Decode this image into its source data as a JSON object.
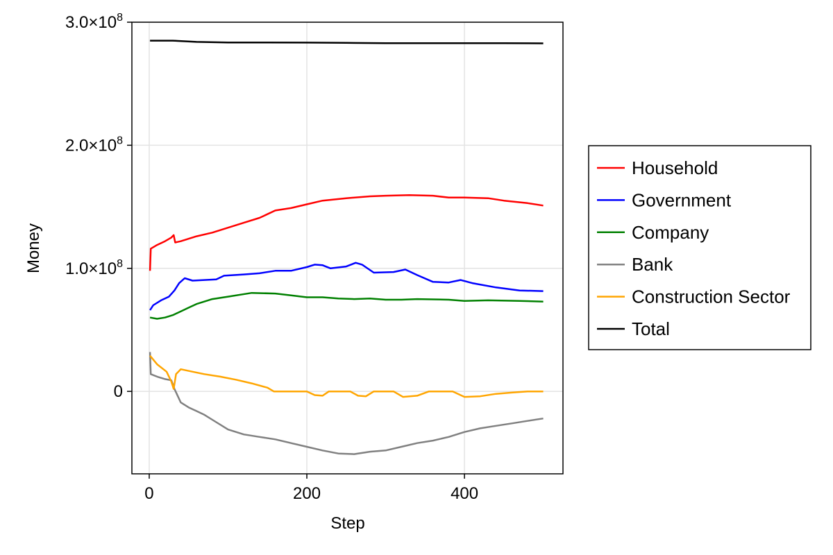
{
  "chart_data": {
    "type": "line",
    "title": "",
    "xlabel": "Step",
    "ylabel": "Money",
    "xlim": [
      -22,
      525
    ],
    "ylim": [
      -67000000,
      300000000
    ],
    "x_ticks": [
      0,
      200,
      400
    ],
    "x_tick_labels": [
      "0",
      "200",
      "400"
    ],
    "y_ticks": [
      0,
      100000000,
      200000000,
      300000000
    ],
    "y_tick_labels": [
      {
        "mant": "0",
        "exp": ""
      },
      {
        "mant": "1.0×10",
        "exp": "8"
      },
      {
        "mant": "2.0×10",
        "exp": "8"
      },
      {
        "mant": "3.0×10",
        "exp": "8"
      }
    ],
    "grid": true,
    "legend_position": "right",
    "series": [
      {
        "name": "Household",
        "color": "#ff0000",
        "points": [
          [
            1,
            98000000
          ],
          [
            2,
            116000000
          ],
          [
            10,
            119000000
          ],
          [
            20,
            122000000
          ],
          [
            28,
            125000000
          ],
          [
            31,
            127000000
          ],
          [
            33,
            121000000
          ],
          [
            40,
            122000000
          ],
          [
            60,
            126000000
          ],
          [
            80,
            129000000
          ],
          [
            100,
            133000000
          ],
          [
            120,
            137000000
          ],
          [
            140,
            141000000
          ],
          [
            160,
            147000000
          ],
          [
            180,
            149000000
          ],
          [
            200,
            152000000
          ],
          [
            220,
            155000000
          ],
          [
            250,
            157000000
          ],
          [
            280,
            158500000
          ],
          [
            300,
            159000000
          ],
          [
            330,
            159500000
          ],
          [
            360,
            159000000
          ],
          [
            380,
            157500000
          ],
          [
            400,
            157500000
          ],
          [
            430,
            157000000
          ],
          [
            450,
            155000000
          ],
          [
            480,
            153000000
          ],
          [
            500,
            151000000
          ]
        ]
      },
      {
        "name": "Government",
        "color": "#0000ff",
        "points": [
          [
            1,
            66000000
          ],
          [
            5,
            70000000
          ],
          [
            15,
            74000000
          ],
          [
            25,
            77000000
          ],
          [
            32,
            82000000
          ],
          [
            38,
            88000000
          ],
          [
            45,
            92000000
          ],
          [
            55,
            90000000
          ],
          [
            70,
            90500000
          ],
          [
            85,
            91000000
          ],
          [
            95,
            94000000
          ],
          [
            120,
            95000000
          ],
          [
            140,
            96000000
          ],
          [
            160,
            98000000
          ],
          [
            180,
            98000000
          ],
          [
            200,
            101000000
          ],
          [
            210,
            103000000
          ],
          [
            220,
            102500000
          ],
          [
            230,
            100000000
          ],
          [
            250,
            101500000
          ],
          [
            262,
            104500000
          ],
          [
            270,
            103000000
          ],
          [
            285,
            96500000
          ],
          [
            310,
            97000000
          ],
          [
            325,
            99000000
          ],
          [
            340,
            94500000
          ],
          [
            360,
            89000000
          ],
          [
            380,
            88500000
          ],
          [
            395,
            90500000
          ],
          [
            410,
            88000000
          ],
          [
            440,
            84500000
          ],
          [
            470,
            82000000
          ],
          [
            500,
            81500000
          ]
        ]
      },
      {
        "name": "Company",
        "color": "#008000",
        "points": [
          [
            1,
            60000000
          ],
          [
            10,
            59000000
          ],
          [
            20,
            60000000
          ],
          [
            30,
            62000000
          ],
          [
            40,
            65000000
          ],
          [
            50,
            68000000
          ],
          [
            60,
            71000000
          ],
          [
            80,
            75000000
          ],
          [
            100,
            77000000
          ],
          [
            130,
            80000000
          ],
          [
            160,
            79500000
          ],
          [
            180,
            78000000
          ],
          [
            200,
            76500000
          ],
          [
            220,
            76500000
          ],
          [
            240,
            75500000
          ],
          [
            260,
            75000000
          ],
          [
            280,
            75500000
          ],
          [
            300,
            74500000
          ],
          [
            320,
            74500000
          ],
          [
            340,
            75000000
          ],
          [
            380,
            74500000
          ],
          [
            400,
            73500000
          ],
          [
            430,
            74000000
          ],
          [
            470,
            73500000
          ],
          [
            500,
            73000000
          ]
        ]
      },
      {
        "name": "Bank",
        "color": "#808080",
        "points": [
          [
            1,
            32000000
          ],
          [
            2,
            14000000
          ],
          [
            10,
            12000000
          ],
          [
            20,
            10000000
          ],
          [
            28,
            9000000
          ],
          [
            32,
            2000000
          ],
          [
            40,
            -9000000
          ],
          [
            50,
            -13000000
          ],
          [
            60,
            -16000000
          ],
          [
            70,
            -19000000
          ],
          [
            80,
            -23000000
          ],
          [
            100,
            -31000000
          ],
          [
            120,
            -35000000
          ],
          [
            140,
            -37000000
          ],
          [
            160,
            -39000000
          ],
          [
            180,
            -42000000
          ],
          [
            200,
            -45000000
          ],
          [
            220,
            -48000000
          ],
          [
            240,
            -50500000
          ],
          [
            260,
            -51000000
          ],
          [
            280,
            -49000000
          ],
          [
            300,
            -48000000
          ],
          [
            320,
            -45000000
          ],
          [
            340,
            -42000000
          ],
          [
            360,
            -40000000
          ],
          [
            380,
            -37000000
          ],
          [
            400,
            -33000000
          ],
          [
            420,
            -30000000
          ],
          [
            440,
            -28000000
          ],
          [
            460,
            -26000000
          ],
          [
            480,
            -24000000
          ],
          [
            500,
            -22000000
          ]
        ]
      },
      {
        "name": "Construction Sector",
        "color": "#ffa500",
        "points": [
          [
            1,
            29000000
          ],
          [
            10,
            22000000
          ],
          [
            22,
            16000000
          ],
          [
            28,
            8000000
          ],
          [
            31,
            2000000
          ],
          [
            34,
            14000000
          ],
          [
            40,
            18000000
          ],
          [
            55,
            16000000
          ],
          [
            70,
            14000000
          ],
          [
            90,
            12000000
          ],
          [
            110,
            9500000
          ],
          [
            130,
            6500000
          ],
          [
            150,
            3000000
          ],
          [
            158,
            0
          ],
          [
            170,
            0
          ],
          [
            200,
            0
          ],
          [
            210,
            -3000000
          ],
          [
            220,
            -3500000
          ],
          [
            228,
            0
          ],
          [
            255,
            0
          ],
          [
            265,
            -3500000
          ],
          [
            275,
            -4000000
          ],
          [
            285,
            0
          ],
          [
            310,
            0
          ],
          [
            322,
            -4500000
          ],
          [
            340,
            -3500000
          ],
          [
            355,
            0
          ],
          [
            385,
            0
          ],
          [
            400,
            -4500000
          ],
          [
            420,
            -4000000
          ],
          [
            440,
            -2000000
          ],
          [
            460,
            -1000000
          ],
          [
            480,
            0
          ],
          [
            500,
            0
          ]
        ]
      },
      {
        "name": "Total",
        "color": "#000000",
        "points": [
          [
            1,
            285000000
          ],
          [
            30,
            285000000
          ],
          [
            60,
            284000000
          ],
          [
            100,
            283500000
          ],
          [
            150,
            283500000
          ],
          [
            200,
            283400000
          ],
          [
            250,
            283200000
          ],
          [
            300,
            283000000
          ],
          [
            350,
            283000000
          ],
          [
            400,
            282900000
          ],
          [
            450,
            282900000
          ],
          [
            500,
            282800000
          ]
        ]
      }
    ]
  }
}
